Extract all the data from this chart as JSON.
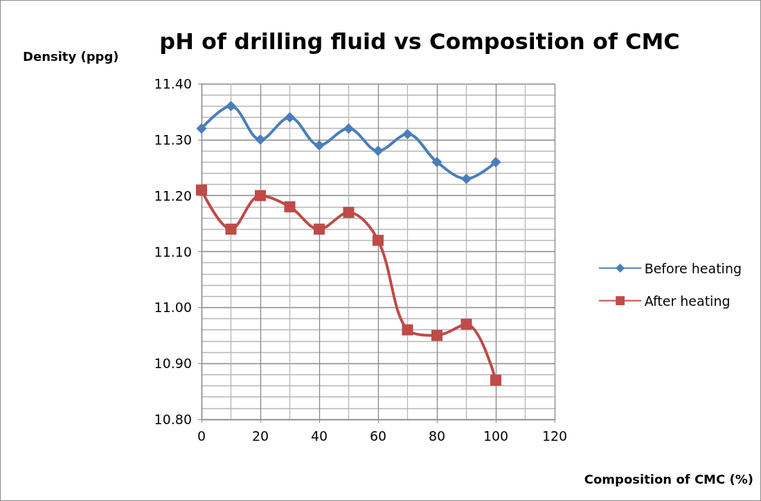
{
  "chart_data": {
    "type": "line",
    "title": "pH of drilling fluid vs Composition of CMC",
    "xlabel": "Composition of CMC (%)",
    "ylabel": "Density (ppg)",
    "x": [
      0,
      10,
      20,
      30,
      40,
      50,
      60,
      70,
      80,
      90,
      100
    ],
    "series": [
      {
        "name": "Before heating",
        "color": "#4a7ebb",
        "marker": "diamond",
        "values": [
          11.32,
          11.36,
          11.3,
          11.34,
          11.29,
          11.32,
          11.28,
          11.31,
          11.26,
          11.23,
          11.26
        ]
      },
      {
        "name": "After heating",
        "color": "#be4b48",
        "marker": "square",
        "values": [
          11.21,
          11.14,
          11.2,
          11.18,
          11.14,
          11.17,
          11.12,
          10.96,
          10.95,
          10.97,
          10.87
        ]
      }
    ],
    "xlim": [
      0,
      120
    ],
    "xticks": [
      0,
      20,
      40,
      60,
      80,
      100,
      120
    ],
    "ylim": [
      10.8,
      11.4
    ],
    "yticks": [
      {
        "value": 10.8,
        "label": "10.80"
      },
      {
        "value": 10.9,
        "label": "10.90"
      },
      {
        "value": 11.0,
        "label": "11.00"
      },
      {
        "value": 11.1,
        "label": "11.10"
      },
      {
        "value": 11.2,
        "label": "11.20"
      },
      {
        "value": 11.3,
        "label": "11.30"
      },
      {
        "value": 11.4,
        "label": "11.40"
      }
    ],
    "grid": true,
    "legend": "right",
    "line_style": "solid"
  }
}
